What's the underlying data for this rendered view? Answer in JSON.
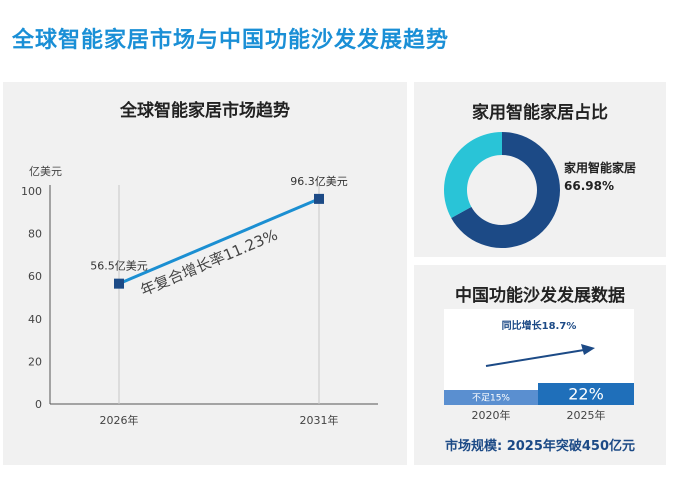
{
  "page_title": "全球智能家居市场与中国功能沙发发展趋势",
  "chart_data": [
    {
      "type": "line",
      "title": "全球智能家居市场趋势",
      "y_unit": "亿美元",
      "ylim": [
        0,
        100
      ],
      "yticks": [
        "0",
        "20",
        "40",
        "60",
        "80",
        "100"
      ],
      "categories": [
        "2026年",
        "2031年"
      ],
      "values": [
        56.5,
        96.3
      ],
      "point_labels": [
        "56.5亿美元",
        "96.3亿美元"
      ],
      "annotation": "年复合增长率11.23%",
      "colors": {
        "line": "#1b8fd2",
        "marker": "#1c4a86"
      },
      "grid": false
    },
    {
      "type": "pie",
      "title": "家用智能家居占比",
      "label": "家用智能家居",
      "value_label": "66.98%",
      "slices": [
        {
          "label": "家用智能家居",
          "value": 66.98,
          "color": "#1c4a86"
        },
        {
          "label": "",
          "value": 33.02,
          "color": "#29c4d7"
        }
      ]
    },
    {
      "type": "bar",
      "title": "中国功能沙发发展数据",
      "categories": [
        "2020年",
        "2025年"
      ],
      "values": [
        15,
        22
      ],
      "bar_labels": [
        "不足15%",
        "22%"
      ],
      "growth_label": "同比增长18.7%",
      "footer": "市场规模: 2025年突破450亿元",
      "colors": {
        "bar_2020": "#5a8fd0",
        "bar_2025": "#1f6fba",
        "arrow": "#1c4a86"
      }
    }
  ]
}
